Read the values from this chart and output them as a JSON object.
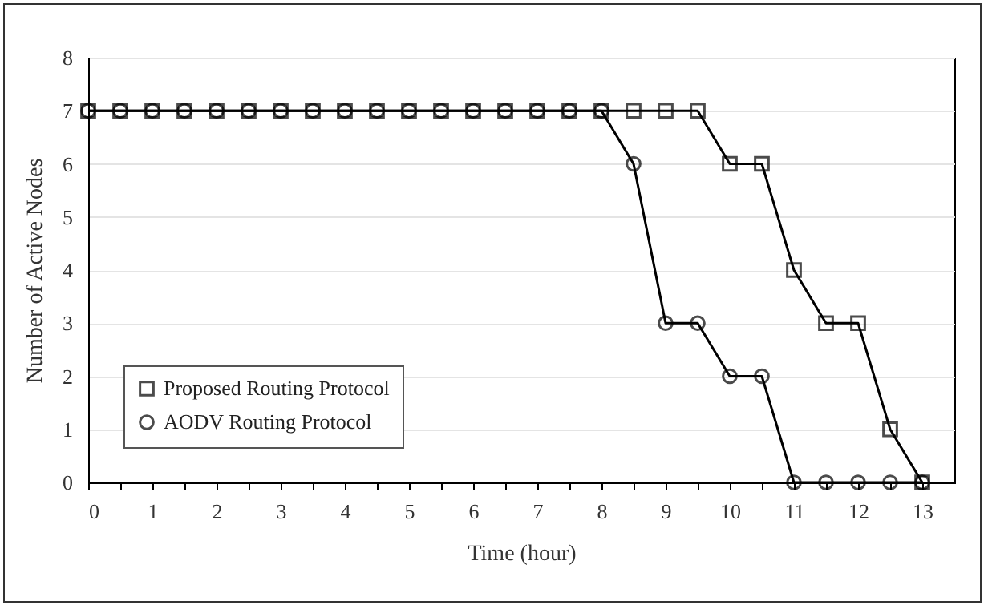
{
  "chart_data": {
    "type": "line",
    "xlabel": "Time (hour)",
    "ylabel": "Number of Active Nodes",
    "x": [
      0,
      0.5,
      1,
      1.5,
      2,
      2.5,
      3,
      3.5,
      4,
      4.5,
      5,
      5.5,
      6,
      6.5,
      7,
      7.5,
      8,
      8.5,
      9,
      9.5,
      10,
      10.5,
      11,
      11.5,
      12,
      12.5,
      13
    ],
    "series": [
      {
        "name": "Proposed Routing Protocol",
        "color": "#000000",
        "marker": "square",
        "values": [
          7,
          7,
          7,
          7,
          7,
          7,
          7,
          7,
          7,
          7,
          7,
          7,
          7,
          7,
          7,
          7,
          7,
          7,
          7,
          7,
          6,
          6,
          4,
          3,
          3,
          1,
          0
        ]
      },
      {
        "name": "AODV Routing Protocol",
        "color": "#000000",
        "marker": "circle",
        "values": [
          7,
          7,
          7,
          7,
          7,
          7,
          7,
          7,
          7,
          7,
          7,
          7,
          7,
          7,
          7,
          7,
          7,
          6,
          3,
          3,
          2,
          2,
          0,
          0,
          0,
          0,
          0
        ]
      }
    ],
    "xlim": [
      0,
      13.5
    ],
    "xticks": [
      0,
      {
        "value": 0.5,
        "label": null
      },
      1,
      {
        "value": 1.5,
        "label": null
      },
      2,
      {
        "value": 2.5,
        "label": null
      },
      3,
      {
        "value": 3.5,
        "label": null
      },
      4,
      {
        "value": 4.5,
        "label": null
      },
      5,
      {
        "value": 5.5,
        "label": null
      },
      6,
      {
        "value": 6.5,
        "label": null
      },
      7,
      {
        "value": 7.5,
        "label": null
      },
      8,
      {
        "value": 8.5,
        "label": null
      },
      9,
      {
        "value": 9.5,
        "label": null
      },
      10,
      {
        "value": 10.5,
        "label": null
      },
      11,
      {
        "value": 11.5,
        "label": null
      },
      12,
      {
        "value": 12.5,
        "label": null
      },
      13
    ],
    "ylim": [
      0,
      8
    ],
    "yticks": [
      0,
      1,
      2,
      3,
      4,
      5,
      6,
      7,
      8
    ],
    "grid": "y",
    "legend": "bottom left",
    "line_style": "solid"
  }
}
